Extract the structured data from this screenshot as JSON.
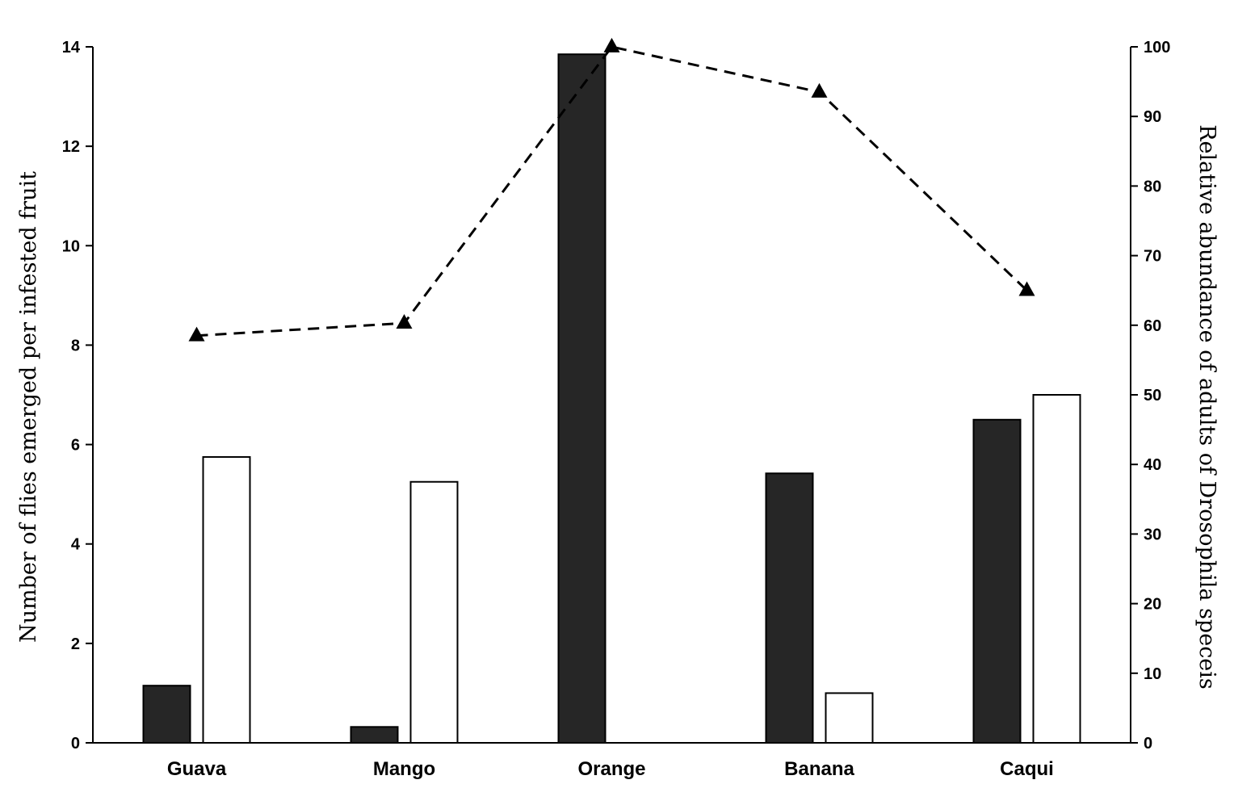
{
  "chart_data": {
    "type": "bar",
    "title": "",
    "categories": [
      "Guava",
      "Mango",
      "Orange",
      "Banana",
      "Caqui"
    ],
    "series": [
      {
        "axis": "left",
        "mark": "bar",
        "fill": "#262626",
        "values": [
          1.15,
          0.32,
          13.85,
          5.42,
          6.5
        ]
      },
      {
        "axis": "left",
        "mark": "bar",
        "fill": "#ffffff",
        "values": [
          5.75,
          5.25,
          null,
          1.0,
          7.0
        ]
      },
      {
        "axis": "right",
        "mark": "dashed-line-triangle",
        "stroke": "#000000",
        "values": [
          58.5,
          60.3,
          100,
          93.5,
          65
        ]
      }
    ],
    "ylabel": "Number of flies emerged per infested fruit",
    "ylim": [
      0,
      14
    ],
    "yticks": [
      "0",
      "2",
      "4",
      "6",
      "8",
      "10",
      "12",
      "14"
    ],
    "y2label": "Relative abundance of adults of Drosophila speceis",
    "y2lim": [
      0,
      100
    ],
    "y2ticks": [
      "0",
      "10",
      "20",
      "30",
      "40",
      "50",
      "60",
      "70",
      "80",
      "90",
      "100"
    ],
    "grid": false,
    "legend": "none"
  }
}
